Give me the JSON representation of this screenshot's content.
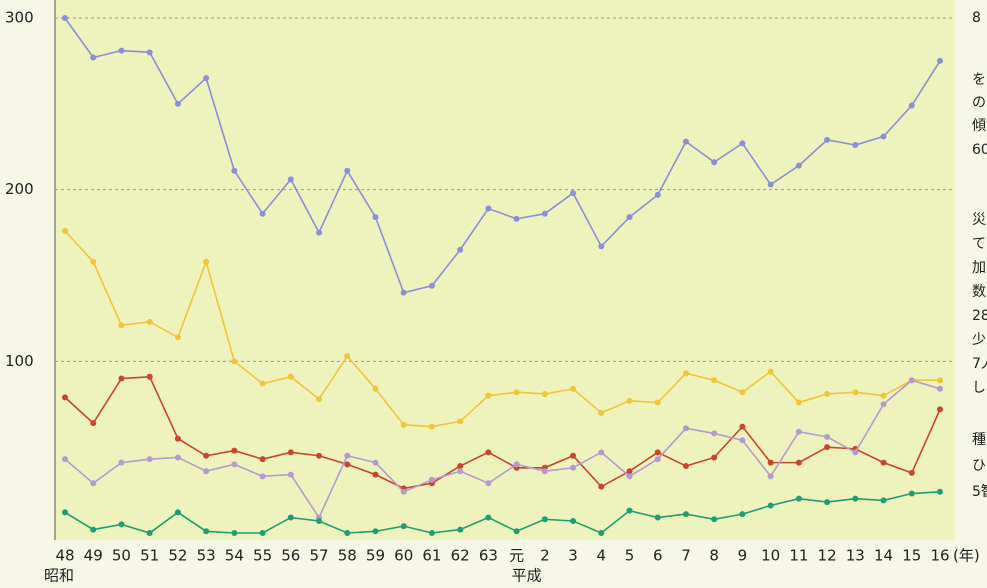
{
  "chart_data": {
    "type": "line",
    "categories": [
      "48",
      "49",
      "50",
      "51",
      "52",
      "53",
      "54",
      "55",
      "56",
      "57",
      "58",
      "59",
      "60",
      "61",
      "62",
      "63",
      "元",
      "2",
      "3",
      "4",
      "5",
      "6",
      "7",
      "8",
      "9",
      "10",
      "11",
      "12",
      "13",
      "14",
      "15",
      "16"
    ],
    "series": [
      {
        "color": "#8a8fd6",
        "values": [
          300,
          277,
          281,
          280,
          250,
          265,
          211,
          186,
          206,
          175,
          211,
          184,
          140,
          144,
          165,
          189,
          183,
          186,
          198,
          167,
          184,
          197,
          228,
          216,
          227,
          203,
          214,
          229,
          226,
          231,
          249,
          275
        ]
      },
      {
        "color": "#f2c43a",
        "values": [
          176,
          158,
          121,
          123,
          114,
          158,
          100,
          87,
          91,
          78,
          103,
          84,
          63,
          62,
          65,
          80,
          82,
          81,
          84,
          70,
          77,
          76,
          93,
          89,
          82,
          94,
          76,
          81,
          82,
          80,
          89,
          89
        ]
      },
      {
        "color": "#c9452e",
        "values": [
          79,
          64,
          90,
          91,
          55,
          45,
          48,
          43,
          47,
          45,
          40,
          34,
          26,
          29,
          39,
          47,
          38,
          38,
          45,
          27,
          36,
          47,
          39,
          44,
          62,
          41,
          41,
          50,
          49,
          41,
          35,
          72
        ]
      },
      {
        "color": "#b49ad0",
        "values": [
          43,
          29,
          41,
          43,
          44,
          36,
          40,
          33,
          34,
          9,
          45,
          41,
          24,
          31,
          36,
          29,
          40,
          36,
          38,
          47,
          33,
          43,
          61,
          58,
          54,
          33,
          59,
          56,
          47,
          75,
          89,
          84
        ]
      },
      {
        "color": "#1f9e73",
        "values": [
          12,
          2,
          5,
          0,
          12,
          1,
          0,
          0,
          9,
          7,
          0,
          1,
          4,
          0,
          2,
          9,
          1,
          8,
          7,
          0,
          13,
          9,
          11,
          8,
          11,
          16,
          20,
          18,
          20,
          19,
          23,
          24
        ]
      }
    ],
    "ylim": [
      0,
      300
    ],
    "yticks": [
      100,
      200,
      300
    ],
    "grid": true,
    "era_labels": [
      "昭和",
      "平成"
    ],
    "x_unit": "(年)",
    "side_text": [
      "8",
      "を",
      "の",
      "傾",
      "60",
      "災",
      "て",
      "加",
      "数",
      "28",
      "少",
      "7人",
      "し",
      "種",
      "ひ",
      "5智"
    ]
  }
}
